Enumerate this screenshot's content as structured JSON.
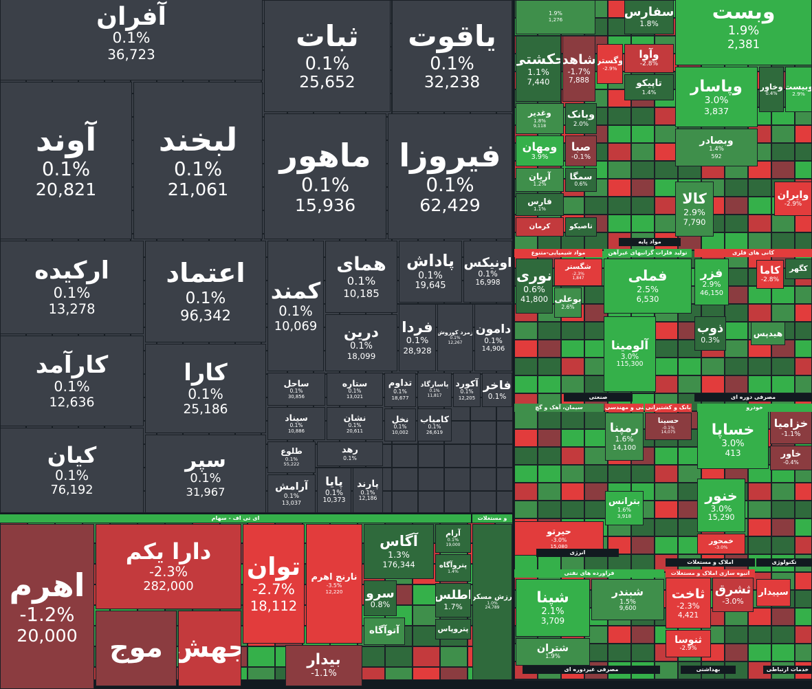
{
  "tiles": [
    {
      "name": "آفران",
      "change": "0.1%",
      "volume": "36,723"
    },
    {
      "name": "ثبات",
      "change": "0.1%",
      "volume": "25,652"
    },
    {
      "name": "یاقوت",
      "change": "0.1%",
      "volume": "32,238"
    },
    {
      "name": "آوند",
      "change": "0.1%",
      "volume": "20,821"
    },
    {
      "name": "لبخند",
      "change": "0.1%",
      "volume": "21,061"
    },
    {
      "name": "ماهور",
      "change": "0.1%",
      "volume": "15,936"
    },
    {
      "name": "فیروزا",
      "change": "0.1%",
      "volume": "62,429"
    },
    {
      "name": "ارکیده",
      "change": "0.1%",
      "volume": "13,278"
    },
    {
      "name": "اعتماد",
      "change": "0.1%",
      "volume": "96,342"
    },
    {
      "name": "کارآمد",
      "change": "0.1%",
      "volume": "12,636"
    },
    {
      "name": "کیان",
      "change": "0.1%",
      "volume": "76,192"
    },
    {
      "name": "کارا",
      "change": "0.1%",
      "volume": "25,186"
    },
    {
      "name": "سپر",
      "change": "0.1%",
      "volume": "31,967"
    },
    {
      "name": "کمند",
      "change": "0.1%",
      "volume": "10,069"
    },
    {
      "name": "همای",
      "change": "0.1%",
      "volume": "10,185"
    },
    {
      "name": "پاداش",
      "change": "0.1%",
      "volume": "19,645"
    },
    {
      "name": "اونیکس",
      "change": "0.1%",
      "volume": "16,998"
    },
    {
      "name": "درین",
      "change": "0.1%",
      "volume": "18,099"
    },
    {
      "name": "فردا",
      "change": "0.1%",
      "volume": "28,928"
    },
    {
      "name": "زمرد کوروش",
      "change": "0.1%",
      "volume": "12,267"
    },
    {
      "name": "دامون",
      "change": "0.1%",
      "volume": "14,906"
    },
    {
      "name": "ساحل",
      "change": "0.1%",
      "volume": "30,856"
    },
    {
      "name": "ستاره",
      "change": "0.1%",
      "volume": "13,021"
    },
    {
      "name": "تداوم",
      "change": "0.1%",
      "volume": "18,677"
    },
    {
      "name": "پاسارگاد",
      "change": "0.1%",
      "volume": "11,817"
    },
    {
      "name": "آکورد",
      "change": "0.1%",
      "volume": "12,205"
    },
    {
      "name": "فاخر",
      "change": "0.1%"
    },
    {
      "name": "سیناد",
      "change": "0.1%",
      "volume": "10,886"
    },
    {
      "name": "نشان",
      "change": "0.1%",
      "volume": "20,611"
    },
    {
      "name": "نخل",
      "change": "0.1%",
      "volume": "10,002"
    },
    {
      "name": "کامیاب",
      "change": "0.1%",
      "volume": "26,619"
    },
    {
      "name": "طلوع",
      "change": "0.1%",
      "volume": "55,222"
    },
    {
      "name": "رهد",
      "change": "0.1%"
    },
    {
      "name": "آرامش",
      "change": "0.1%",
      "volume": "13,037"
    },
    {
      "name": "پایا",
      "change": "0.1%",
      "volume": "10,373"
    },
    {
      "name": "پارند",
      "change": "0.1%",
      "volume": "12,186"
    },
    {
      "name": "اهرم",
      "change": "-1.2%",
      "volume": "20,000"
    },
    {
      "name": "دارا یکم",
      "change": "-2.3%",
      "volume": "282,000"
    },
    {
      "name": "موج"
    },
    {
      "name": "جهش"
    },
    {
      "name": "توان",
      "change": "-2.7%",
      "volume": "18,112"
    },
    {
      "name": "نارنج اهرم",
      "change": "-3.5%",
      "volume": "12,220"
    },
    {
      "name": "بیدار",
      "change": "-1.1%"
    },
    {
      "name": "آگاس",
      "change": "1.3%",
      "volume": "176,344"
    },
    {
      "name": "آرام",
      "change": "0.1%",
      "volume": "19,000"
    },
    {
      "name": "پتروآگاه",
      "change": "1.4%"
    },
    {
      "name": "سرو",
      "change": "0.8%"
    },
    {
      "name": "آتوآگاه"
    },
    {
      "name": "اطلس",
      "change": "1.7%"
    },
    {
      "name": "پتروپاس"
    },
    {
      "name": "ارزش مسکن",
      "change": "1.0%",
      "volume": "24,789"
    },
    {
      "change": "1.9%",
      "volume": "1,276"
    },
    {
      "name": "وبست",
      "change": "1.9%",
      "volume": "2,381"
    },
    {
      "name": "سفارس",
      "change": "1.8%"
    },
    {
      "name": "حکشتی",
      "change": "1.1%",
      "volume": "7,440"
    },
    {
      "name": "شاهد",
      "change": "-1.7%",
      "volume": "7,888"
    },
    {
      "name": "وگستر",
      "change": "-2.9%"
    },
    {
      "name": "وآوا",
      "change": "-2.8%"
    },
    {
      "name": "تاپیکو",
      "change": "1.4%"
    },
    {
      "name": "وپاسار",
      "change": "3.0%",
      "volume": "3,837"
    },
    {
      "name": "وبصادر",
      "change": "1.4%",
      "volume": "592"
    },
    {
      "name": "وخاور",
      "change": "0.4%"
    },
    {
      "name": "وبیست",
      "change": "2.9%"
    },
    {
      "name": "وغدیر",
      "change": "1.8%",
      "volume": "9,118"
    },
    {
      "name": "وبانک",
      "change": "2.0%"
    },
    {
      "name": "ومهان",
      "change": "3.9%"
    },
    {
      "name": "صبا",
      "change": "-0.1%"
    },
    {
      "name": "آریان",
      "change": "1.2%"
    },
    {
      "name": "سمگا",
      "change": "0.6%"
    },
    {
      "name": "فارس",
      "change": "1.1%"
    },
    {
      "name": "کرمان"
    },
    {
      "name": "تاصیکو"
    },
    {
      "name": "کالا",
      "change": "2.9%",
      "volume": "7,790"
    },
    {
      "name": "وایران",
      "change": "-2.9%"
    },
    {
      "name": "نوری",
      "change": "0.6%",
      "volume": "41,800"
    },
    {
      "name": "شگستر",
      "change": "-2.3%",
      "volume": "1,847"
    },
    {
      "name": "بوعلی",
      "change": "2.6%"
    },
    {
      "name": "فملی",
      "change": "2.5%",
      "volume": "6,530"
    },
    {
      "name": "آلومینا",
      "change": "3.0%",
      "volume": "115,300"
    },
    {
      "name": "فزر",
      "change": "2.9%",
      "volume": "46,150"
    },
    {
      "name": "کاما",
      "change": "-2.8%"
    },
    {
      "name": "کگهر"
    },
    {
      "name": "ذوب",
      "change": "0.3%"
    },
    {
      "name": "هیدپس"
    },
    {
      "name": "رمپنا",
      "change": "1.6%",
      "volume": "14,100"
    },
    {
      "name": "حسینا",
      "change": "-0.1%",
      "volume": "14,075"
    },
    {
      "name": "بترانس",
      "change": "1.6%",
      "volume": "3,918"
    },
    {
      "name": "حیرتو",
      "change": "-3.0%",
      "volume": "15,080"
    },
    {
      "name": "خساپا",
      "change": "3.0%",
      "volume": "413"
    },
    {
      "name": "خزامیا",
      "change": "-1.1%"
    },
    {
      "name": "خاور",
      "change": "-0.4%"
    },
    {
      "name": "خنور",
      "change": "3.0%",
      "volume": "15,290"
    },
    {
      "name": "خمحور",
      "change": "-3.0%"
    },
    {
      "name": "شپنا",
      "change": "2.1%",
      "volume": "3,709"
    },
    {
      "name": "شبندر",
      "change": "1.5%",
      "volume": "9,600"
    },
    {
      "name": "شتران",
      "change": "1.9%"
    },
    {
      "name": "ثاخت",
      "change": "-2.3%",
      "volume": "4,421"
    },
    {
      "name": "ثشرق",
      "change": "-3.0%"
    },
    {
      "name": "ثنوسا",
      "change": "-2.9%"
    },
    {
      "name": "سپیدار"
    }
  ],
  "headers": [
    "ای تی اف - سهام",
    "و مستغلات",
    "مواد پایه",
    "مواد شیمیایی-متنوع",
    "تولید فلزات گرانبهای غیرآهن",
    "کانی های فلزی",
    "صنعتی",
    "مصرفی دوره ای",
    "سیمان، آهک و گچ",
    "خدمات فنی و مهندسی",
    "بانک و کشتیرانی",
    "خودرو",
    "انرژی",
    "فراورده های نفتی",
    "املاک و مستغلات",
    "انبوه سازی املاک و مستغلات",
    "تکنولوژی",
    "مصرفی غیردوره ای",
    "بهداشتی",
    "خدمات ارتباطی"
  ]
}
